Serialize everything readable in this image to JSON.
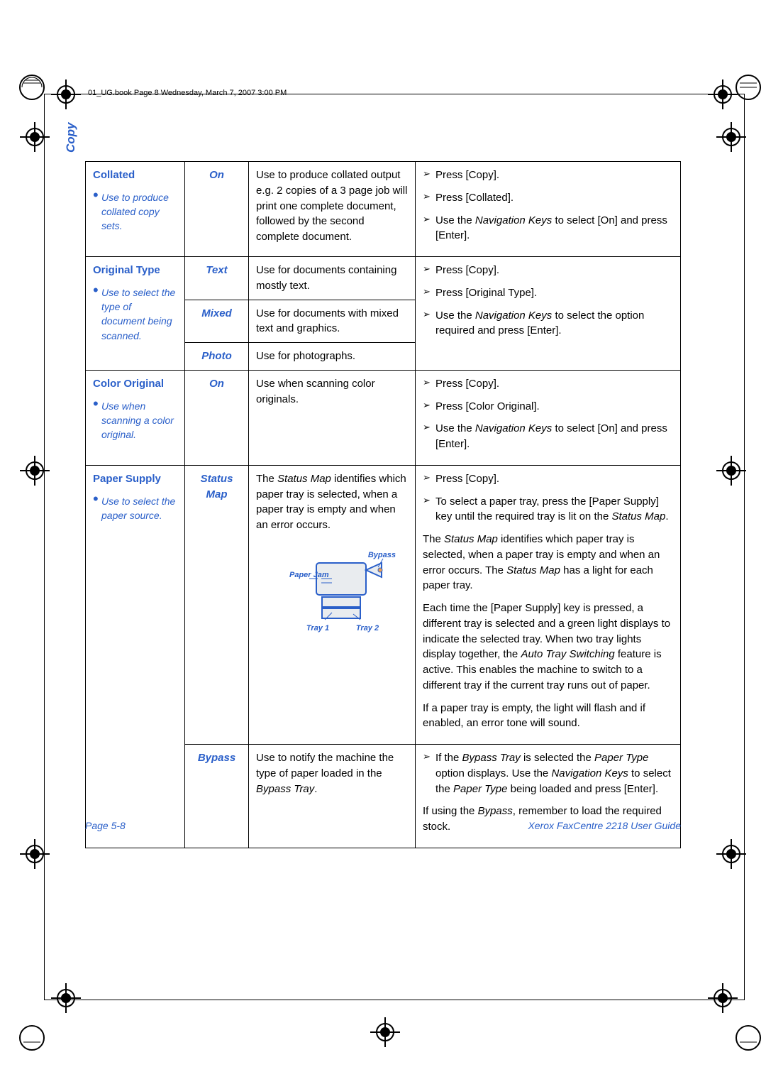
{
  "header_text": "01_UG.book  Page 8  Wednesday, March 7, 2007  3:00 PM",
  "side_label": "Copy",
  "footer_left": "Page 5-8",
  "footer_right": "Xerox FaxCentre 2218 User Guide",
  "colors": {
    "accent": "#2a5fc9",
    "border": "#000000",
    "bg": "#ffffff"
  },
  "table": {
    "rows": [
      {
        "feature_title": "Collated",
        "feature_note": "Use to produce collated copy sets.",
        "options": [
          {
            "name": "On",
            "desc": "Use to produce collated output e.g. 2 copies of a 3 page job will print one complete document, followed by the second complete document."
          }
        ],
        "steps": [
          {
            "type": "step",
            "text": "Press [Copy]."
          },
          {
            "type": "step",
            "text": "Press [Collated]."
          },
          {
            "type": "step",
            "html": "Use the <span class=\"ital\">Navigation Keys</span> to select [On] and press [Enter]."
          }
        ]
      },
      {
        "feature_title": "Original Type",
        "feature_note": "Use to select the type of document being scanned.",
        "options": [
          {
            "name": "Text",
            "desc": "Use for documents containing mostly text."
          },
          {
            "name": "Mixed",
            "desc": "Use for documents with mixed text and graphics."
          },
          {
            "name": "Photo",
            "desc": "Use for photographs."
          }
        ],
        "steps": [
          {
            "type": "step",
            "text": "Press [Copy]."
          },
          {
            "type": "step",
            "text": "Press [Original Type]."
          },
          {
            "type": "step",
            "html": "Use the <span class=\"ital\">Navigation Keys</span> to select the option required and press [Enter]."
          }
        ]
      },
      {
        "feature_title": "Color Original",
        "feature_note": "Use when scanning a color original.",
        "options": [
          {
            "name": "On",
            "desc": "Use when scanning color originals."
          }
        ],
        "steps": [
          {
            "type": "step",
            "text": "Press [Copy]."
          },
          {
            "type": "step",
            "text": "Press [Color Original]."
          },
          {
            "type": "step",
            "html": "Use the <span class=\"ital\">Navigation Keys</span> to select [On] and press [Enter]."
          }
        ]
      },
      {
        "feature_title": "Paper Supply",
        "feature_note": "Use to select the paper source.",
        "options": [
          {
            "name": "Status Map",
            "desc_html": "The <span class=\"ital\">Status Map</span> identifies which paper tray is selected, when a paper tray is empty and when an error occurs.",
            "diagram": {
              "bypass": "Bypass",
              "paper_jam": "Paper Jam",
              "tray1": "Tray 1",
              "tray2": "Tray 2"
            },
            "steps": [
              {
                "type": "step",
                "text": "Press [Copy]."
              },
              {
                "type": "step",
                "html": "To select a paper tray, press the [Paper Supply] key until the required tray is lit on the <span class=\"ital\">Status Map</span>."
              },
              {
                "type": "plain",
                "html": "The <span class=\"ital\">Status Map</span> identifies which paper tray is selected, when a paper tray is empty and when an error occurs. The <span class=\"ital\">Status Map</span> has a light for each paper tray."
              },
              {
                "type": "plain",
                "html": "Each time the [Paper Supply] key is pressed, a different tray is selected and a green light displays to indicate the selected tray. When two tray lights display together, the <span class=\"ital\">Auto Tray Switching</span> feature is active. This enables the machine to switch to a different tray if the current tray runs out of paper."
              },
              {
                "type": "plain",
                "text": "If a paper tray is empty, the light will flash and if enabled, an error tone will sound."
              }
            ]
          },
          {
            "name": "Bypass",
            "desc_html": "Use to notify the machine the type of paper loaded in the <span class=\"ital\">Bypass Tray</span>.",
            "steps": [
              {
                "type": "step",
                "html": "If the <span class=\"ital\">Bypass Tray</span> is selected the <span class=\"ital\">Paper Type</span> option displays. Use the <span class=\"ital\">Navigation Keys</span> to select the <span class=\"ital\">Paper Type</span> being loaded and press [Enter]."
              },
              {
                "type": "plain",
                "html": "If using the <span class=\"ital\">Bypass</span>, remember to load the required stock."
              }
            ]
          }
        ]
      }
    ]
  }
}
